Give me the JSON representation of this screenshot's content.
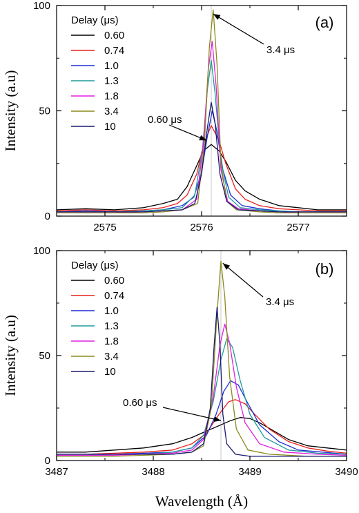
{
  "chart_data": [
    {
      "type": "line",
      "panel_label": "(a)",
      "ylabel": "Intensity (a.u)",
      "xlabel": "",
      "xlim": [
        2574.5,
        2577.5
      ],
      "ylim": [
        0,
        100
      ],
      "xticks": [
        2575,
        2576,
        2577
      ],
      "yticks": [
        0,
        50,
        100
      ],
      "legend": {
        "title": "Delay (μs)",
        "placement": "top-left"
      },
      "reference_line_x": 2576.1,
      "annotations": [
        {
          "text": "3.4 μs",
          "points_to_x": 2576.12,
          "points_to_y": 96
        },
        {
          "text": "0.60 μs",
          "points_to_x": 2576.05,
          "points_to_y": 36
        }
      ],
      "series": [
        {
          "name": "0.60",
          "color": "#000000",
          "x": [
            2574.5,
            2574.8,
            2575.1,
            2575.4,
            2575.6,
            2575.75,
            2575.85,
            2575.95,
            2576.02,
            2576.1,
            2576.18,
            2576.25,
            2576.35,
            2576.45,
            2576.6,
            2576.8,
            2577.0,
            2577.2,
            2577.5
          ],
          "y": [
            3,
            3.5,
            3,
            4,
            6,
            8,
            14,
            24,
            31,
            34,
            31,
            26,
            17,
            12,
            8,
            5,
            4,
            3,
            3
          ]
        },
        {
          "name": "0.74",
          "color": "#e8201c",
          "x": [
            2574.5,
            2574.8,
            2575.1,
            2575.4,
            2575.6,
            2575.75,
            2575.85,
            2575.95,
            2576.02,
            2576.1,
            2576.18,
            2576.25,
            2576.35,
            2576.45,
            2576.6,
            2576.8,
            2577.0,
            2577.2,
            2577.5
          ],
          "y": [
            2.5,
            3,
            2.5,
            3,
            4,
            6,
            10,
            20,
            34,
            43,
            36,
            25,
            13,
            8,
            5,
            3.5,
            3,
            2.5,
            2.5
          ]
        },
        {
          "name": "1.0",
          "color": "#1c2fd6",
          "x": [
            2574.5,
            2574.8,
            2575.1,
            2575.4,
            2575.6,
            2575.8,
            2575.92,
            2576.0,
            2576.06,
            2576.11,
            2576.16,
            2576.22,
            2576.3,
            2576.42,
            2576.6,
            2576.8,
            2577.0,
            2577.2,
            2577.5
          ],
          "y": [
            2,
            2.5,
            2,
            2.5,
            3,
            5,
            9,
            21,
            38,
            50,
            40,
            22,
            10,
            5,
            3.5,
            2.5,
            2,
            2,
            2
          ]
        },
        {
          "name": "1.3",
          "color": "#1f9a9a",
          "x": [
            2574.5,
            2574.8,
            2575.1,
            2575.4,
            2575.6,
            2575.8,
            2575.93,
            2576.01,
            2576.06,
            2576.1,
            2576.14,
            2576.2,
            2576.28,
            2576.4,
            2576.6,
            2576.8,
            2577.0,
            2577.2,
            2577.5
          ],
          "y": [
            2,
            2,
            2,
            2.5,
            3,
            4,
            10,
            32,
            60,
            74,
            58,
            26,
            9,
            4,
            3,
            2.5,
            2,
            2,
            2
          ]
        },
        {
          "name": "1.8",
          "color": "#e21ee2",
          "x": [
            2574.5,
            2574.8,
            2575.1,
            2575.4,
            2575.6,
            2575.8,
            2575.95,
            2576.02,
            2576.07,
            2576.11,
            2576.15,
            2576.2,
            2576.27,
            2576.38,
            2576.6,
            2576.8,
            2577.0,
            2577.2,
            2577.5
          ],
          "y": [
            1.5,
            1.5,
            1.5,
            2,
            2.5,
            3,
            8,
            35,
            70,
            83,
            62,
            22,
            7,
            3.5,
            2.5,
            2,
            1.5,
            1.5,
            1.5
          ]
        },
        {
          "name": "3.4",
          "color": "#8a8a1a",
          "x": [
            2574.5,
            2574.8,
            2575.1,
            2575.4,
            2575.6,
            2575.8,
            2575.96,
            2576.03,
            2576.08,
            2576.12,
            2576.16,
            2576.2,
            2576.26,
            2576.36,
            2576.6,
            2576.8,
            2577.0,
            2577.2,
            2577.5
          ],
          "y": [
            1.5,
            1.5,
            1.5,
            1.5,
            2,
            3,
            6,
            35,
            80,
            98,
            72,
            25,
            7,
            3,
            2,
            1.5,
            1.5,
            1.5,
            1.5
          ]
        },
        {
          "name": "10",
          "color": "#1a1a70",
          "x": [
            2574.5,
            2574.8,
            2575.1,
            2575.4,
            2575.6,
            2575.8,
            2575.93,
            2576.0,
            2576.06,
            2576.1,
            2576.14,
            2576.19,
            2576.26,
            2576.38,
            2576.6,
            2576.8,
            2577.0,
            2577.2,
            2577.5
          ],
          "y": [
            2,
            2,
            2,
            2,
            2.5,
            3,
            6,
            20,
            42,
            54,
            44,
            20,
            7,
            3,
            2.5,
            2,
            2,
            2,
            2
          ]
        }
      ]
    },
    {
      "type": "line",
      "panel_label": "(b)",
      "ylabel": "Intensity (a.u)",
      "xlabel": "Wavelength (Å)",
      "xlim": [
        3487,
        3490
      ],
      "ylim": [
        0,
        100
      ],
      "xticks": [
        3487,
        3488,
        3489,
        3490
      ],
      "yticks": [
        0,
        50,
        100
      ],
      "legend": {
        "title": "Delay (μs)",
        "placement": "top-left"
      },
      "reference_line_x": 3488.7,
      "annotations": [
        {
          "text": "3.4 μs",
          "points_to_x": 3488.72,
          "points_to_y": 94
        },
        {
          "text": "0.60 μs",
          "points_to_x": 3488.7,
          "points_to_y": 19
        }
      ],
      "series": [
        {
          "name": "0.60",
          "color": "#000000",
          "x": [
            3487,
            3487.3,
            3487.6,
            3487.9,
            3488.2,
            3488.4,
            3488.55,
            3488.7,
            3488.8,
            3488.9,
            3489.0,
            3489.1,
            3489.25,
            3489.4,
            3489.6,
            3489.8,
            3490
          ],
          "y": [
            4,
            4,
            5,
            6,
            8,
            11,
            14,
            17,
            19,
            20.5,
            20,
            18,
            14,
            10,
            7,
            6,
            5
          ]
        },
        {
          "name": "0.74",
          "color": "#e8201c",
          "x": [
            3487,
            3487.3,
            3487.6,
            3487.9,
            3488.2,
            3488.4,
            3488.55,
            3488.68,
            3488.78,
            3488.85,
            3488.95,
            3489.05,
            3489.2,
            3489.4,
            3489.6,
            3489.8,
            3490
          ],
          "y": [
            3,
            3,
            3.5,
            4,
            5,
            8,
            13,
            22,
            28,
            29,
            27,
            22,
            15,
            9,
            6,
            4.5,
            3.5
          ]
        },
        {
          "name": "1.0",
          "color": "#1c2fd6",
          "x": [
            3487,
            3487.3,
            3487.6,
            3487.9,
            3488.2,
            3488.4,
            3488.55,
            3488.65,
            3488.73,
            3488.8,
            3488.88,
            3488.97,
            3489.1,
            3489.3,
            3489.5,
            3489.75,
            3490
          ],
          "y": [
            3,
            3,
            3,
            3.5,
            4,
            6,
            12,
            22,
            33,
            38,
            36,
            28,
            17,
            9,
            5,
            4,
            3
          ]
        },
        {
          "name": "1.3",
          "color": "#1f9a9a",
          "x": [
            3487,
            3487.3,
            3487.6,
            3487.9,
            3488.2,
            3488.4,
            3488.52,
            3488.62,
            3488.7,
            3488.76,
            3488.82,
            3488.9,
            3489.0,
            3489.15,
            3489.4,
            3489.7,
            3490
          ],
          "y": [
            2.5,
            2.5,
            3,
            3,
            4,
            6,
            12,
            28,
            48,
            58,
            54,
            38,
            22,
            11,
            5,
            3.5,
            3
          ]
        },
        {
          "name": "1.8",
          "color": "#e21ee2",
          "x": [
            3487,
            3487.3,
            3487.6,
            3487.9,
            3488.2,
            3488.4,
            3488.52,
            3488.62,
            3488.69,
            3488.74,
            3488.79,
            3488.86,
            3488.95,
            3489.1,
            3489.35,
            3489.7,
            3490
          ],
          "y": [
            2.5,
            2.5,
            2.5,
            3,
            3.5,
            5,
            10,
            30,
            55,
            65,
            56,
            35,
            18,
            8,
            4,
            3,
            2.5
          ]
        },
        {
          "name": "3.4",
          "color": "#8a8a1a",
          "x": [
            3487,
            3487.3,
            3487.6,
            3487.9,
            3488.2,
            3488.4,
            3488.52,
            3488.6,
            3488.66,
            3488.7,
            3488.74,
            3488.79,
            3488.86,
            3488.98,
            3489.2,
            3489.6,
            3490
          ],
          "y": [
            2,
            2,
            2,
            2.5,
            3,
            4,
            7,
            25,
            70,
            95,
            78,
            40,
            15,
            5,
            3,
            2,
            2
          ]
        },
        {
          "name": "10",
          "color": "#1a1a70",
          "x": [
            3487,
            3487.3,
            3487.6,
            3487.9,
            3488.2,
            3488.4,
            3488.52,
            3488.59,
            3488.63,
            3488.66,
            3488.69,
            3488.72,
            3488.76,
            3488.85,
            3489.0,
            3489.3,
            3489.6,
            3490
          ],
          "y": [
            3,
            3,
            3,
            3,
            3,
            4,
            8,
            25,
            55,
            73,
            55,
            22,
            8,
            3,
            2,
            2,
            2,
            2
          ]
        }
      ]
    }
  ]
}
